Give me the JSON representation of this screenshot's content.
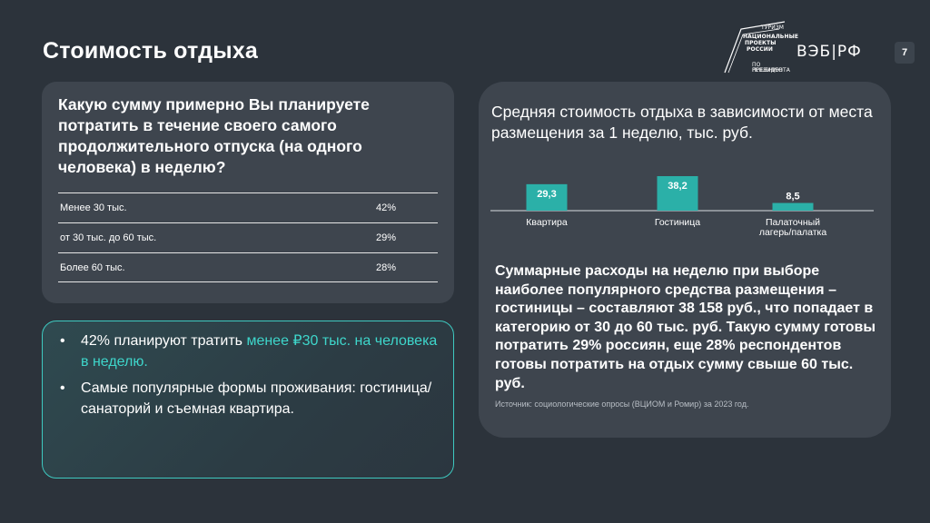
{
  "page_title": "Стоимость отдыха",
  "page_number": "7",
  "logos": {
    "national_projects": [
      "ТУРИЗМ",
      "НАЦИОНАЛЬНЫЕ",
      "ПРОЕКТЫ",
      "РОССИИ",
      "ПО РЕШЕНИЮ",
      "ПРЕЗИДЕНТА"
    ],
    "veb": "ВЭБ|РФ"
  },
  "question_card": {
    "title": "Какую сумму примерно Вы планируете потратить в течение своего самого продолжительного отпуска (на одного человека) в неделю?",
    "rows": [
      {
        "label": "Менее 30 тыс.",
        "value": "42%"
      },
      {
        "label": "от 30 тыс. до 60 тыс.",
        "value": "29%"
      },
      {
        "label": "Более 60 тыс.",
        "value": "28%"
      }
    ]
  },
  "bullets_card": {
    "item1_prefix": "42% планируют тратить ",
    "item1_accent": "менее ₽30 тыс. на человека в неделю.",
    "item2": "Самые популярные формы проживания: гостиница/санаторий и съемная квартира."
  },
  "right_card": {
    "title": "Средняя стоимость отдыха в зависимости от места размещения за 1 неделю, тыс. руб.",
    "summary": "Суммарные расходы на неделю при выборе наиболее популярного средства размещения – гостиницы – составляют 38 158 руб., что попадает в категорию от 30 до 60 тыс. руб. Такую сумму готовы потратить 29% россиян, еще 28% респондентов готовы потратить на отдых сумму свыше 60 тыс. руб.",
    "source": "Источник: социологические опросы (ВЦИОМ и Ромир) за 2023 год."
  },
  "chart_data": {
    "type": "bar",
    "categories": [
      "Квартира",
      "Гостиница",
      "Палаточный лагерь/палатка"
    ],
    "category_lines": [
      [
        "Квартира"
      ],
      [
        "Гостиница"
      ],
      [
        "Палаточный",
        "лагерь/палатка"
      ]
    ],
    "values": [
      29.3,
      38.2,
      8.5
    ],
    "value_labels": [
      "29,3",
      "38,2",
      "8,5"
    ],
    "ylim": [
      0,
      38.2
    ],
    "bar_color": "#2bb0a8"
  },
  "colors": {
    "background": "#2c333b",
    "card": "#3e454e",
    "accent": "#3ed6cb"
  }
}
